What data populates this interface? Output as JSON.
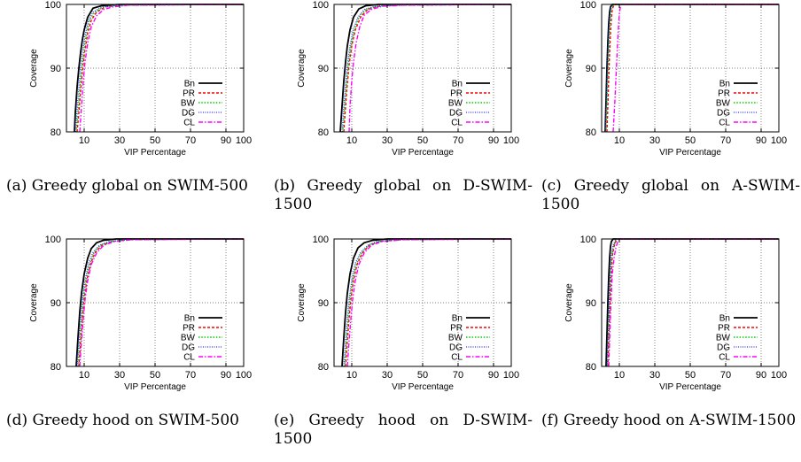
{
  "figure": {
    "legend_labels": [
      "Bn",
      "PR",
      "BW",
      "DG",
      "CL"
    ],
    "series_colors": {
      "Bn": "#000000",
      "PR": "#ff0000",
      "BW": "#00cc00",
      "DG": "#3333ff",
      "CL": "#ff00ff"
    }
  },
  "chart_data": [
    {
      "type": "line",
      "caption": "(a) Greedy global on SWIM-500",
      "xlabel": "VIP Percentage",
      "ylabel": "Coverage",
      "xlim": [
        0,
        100
      ],
      "ylim": [
        80,
        100
      ],
      "xticks": [
        10,
        30,
        50,
        70,
        90,
        100
      ],
      "yticks": [
        80,
        90,
        100
      ],
      "grid": true,
      "legend_position": "bottom-right",
      "series": [
        {
          "name": "Bn",
          "x": [
            4.5,
            5,
            6,
            7,
            8,
            9,
            10,
            12,
            15,
            20,
            30,
            100
          ],
          "y": [
            80,
            83,
            87,
            90,
            92.5,
            94.5,
            96,
            98,
            99.4,
            99.8,
            100,
            100
          ]
        },
        {
          "name": "PR",
          "x": [
            6,
            7,
            8,
            9,
            10,
            12,
            14,
            17,
            22,
            30,
            100
          ],
          "y": [
            80,
            83,
            86.5,
            89.5,
            92,
            95.5,
            97.5,
            98.8,
            99.6,
            99.9,
            100
          ]
        },
        {
          "name": "BW",
          "x": [
            5.5,
            6.5,
            7.5,
            8.5,
            9.5,
            11,
            13,
            16,
            21,
            30,
            100
          ],
          "y": [
            80,
            83,
            86.5,
            89.5,
            92,
            95,
            97.5,
            98.8,
            99.6,
            99.9,
            100
          ]
        },
        {
          "name": "DG",
          "x": [
            5,
            6,
            7,
            8,
            9,
            10.5,
            12.5,
            15,
            20,
            30,
            100
          ],
          "y": [
            80,
            83.5,
            87,
            90,
            92.5,
            95.2,
            97.5,
            98.8,
            99.6,
            99.9,
            100
          ]
        },
        {
          "name": "CL",
          "x": [
            7.5,
            8.5,
            9.5,
            10.5,
            12,
            14,
            17,
            21,
            26,
            35,
            100
          ],
          "y": [
            80,
            84,
            88,
            91,
            94,
            96.5,
            98.2,
            99.2,
            99.6,
            99.9,
            100
          ]
        }
      ]
    },
    {
      "type": "line",
      "caption": "(b) Greedy global on D-SWIM-1500",
      "xlabel": "VIP Percentage",
      "ylabel": "Coverage",
      "xlim": [
        0,
        100
      ],
      "ylim": [
        80,
        100
      ],
      "xticks": [
        10,
        30,
        50,
        70,
        90,
        100
      ],
      "yticks": [
        80,
        90,
        100
      ],
      "grid": true,
      "legend_position": "bottom-right",
      "series": [
        {
          "name": "Bn",
          "x": [
            3.5,
            4.5,
            5.5,
            6.5,
            7.5,
            9,
            11,
            14,
            18,
            25,
            100
          ],
          "y": [
            80,
            84,
            88,
            91,
            93.5,
            96,
            98,
            99.3,
            99.8,
            100,
            100
          ]
        },
        {
          "name": "PR",
          "x": [
            5.5,
            6.5,
            7.5,
            8.5,
            10,
            12,
            15,
            19,
            25,
            35,
            100
          ],
          "y": [
            80,
            84,
            87.5,
            90.5,
            93.5,
            96,
            98,
            99.2,
            99.7,
            99.9,
            100
          ]
        },
        {
          "name": "BW",
          "x": [
            5,
            6,
            7,
            8,
            9.5,
            11.5,
            14,
            18,
            24,
            35,
            100
          ],
          "y": [
            80,
            84,
            87.5,
            90.5,
            93.5,
            96,
            98,
            99.2,
            99.7,
            99.9,
            100
          ]
        },
        {
          "name": "DG",
          "x": [
            4.5,
            5.5,
            6.5,
            7.5,
            9,
            11,
            13.5,
            17,
            23,
            35,
            100
          ],
          "y": [
            80,
            84,
            87.5,
            90.5,
            93.5,
            96.2,
            98,
            99.2,
            99.7,
            99.9,
            100
          ]
        },
        {
          "name": "CL",
          "x": [
            8.5,
            9,
            10,
            11,
            12.5,
            14.5,
            17,
            21,
            27,
            40,
            100
          ],
          "y": [
            80,
            84,
            88,
            91,
            94,
            96.5,
            98.3,
            99.2,
            99.7,
            99.9,
            100
          ]
        }
      ]
    },
    {
      "type": "line",
      "caption": "(c) Greedy global on A-SWIM-1500",
      "xlabel": "VIP Percentage",
      "ylabel": "Coverage",
      "xlim": [
        0,
        100
      ],
      "ylim": [
        80,
        100
      ],
      "xticks": [
        10,
        30,
        50,
        70,
        90,
        100
      ],
      "yticks": [
        80,
        90,
        100
      ],
      "grid": true,
      "legend_position": "bottom-right",
      "series": [
        {
          "name": "Bn",
          "x": [
            2,
            2.5,
            3,
            3.5,
            4,
            4.5,
            5,
            6,
            100
          ],
          "y": [
            80,
            85,
            90,
            94,
            97,
            98.8,
            99.6,
            100,
            100
          ]
        },
        {
          "name": "PR",
          "x": [
            3,
            3.5,
            4,
            4.5,
            5,
            5.5,
            6,
            7,
            100
          ],
          "y": [
            80,
            84,
            88.5,
            92.5,
            95.5,
            97.8,
            99.2,
            100,
            100
          ]
        },
        {
          "name": "BW",
          "x": [
            2.5,
            3,
            3.5,
            4,
            4.5,
            5,
            5.5,
            6.5,
            100
          ],
          "y": [
            80,
            84.5,
            89,
            93,
            96,
            98.2,
            99.4,
            100,
            100
          ]
        },
        {
          "name": "DG",
          "x": [
            2.2,
            2.7,
            3.2,
            3.7,
            4.2,
            4.7,
            5.2,
            6.2,
            100
          ],
          "y": [
            80,
            85,
            89.5,
            93.5,
            96.5,
            98.5,
            99.5,
            100,
            100
          ]
        },
        {
          "name": "CL",
          "x": [
            6.5,
            7,
            7.5,
            8,
            8.5,
            9,
            9.5,
            10,
            10.5,
            11,
            100
          ],
          "y": [
            80,
            82.5,
            85,
            88,
            91,
            94,
            96.5,
            98.5,
            99.5,
            100,
            100
          ]
        }
      ]
    },
    {
      "type": "line",
      "caption": "(d) Greedy hood on SWIM-500",
      "xlabel": "VIP Percentage",
      "ylabel": "Coverage",
      "xlim": [
        0,
        100
      ],
      "ylim": [
        80,
        100
      ],
      "xticks": [
        10,
        30,
        50,
        70,
        90,
        100
      ],
      "yticks": [
        80,
        90,
        100
      ],
      "grid": true,
      "legend_position": "bottom-right",
      "series": [
        {
          "name": "Bn",
          "x": [
            5.5,
            6.5,
            7.5,
            8.5,
            10,
            12,
            14,
            17,
            21,
            28,
            100
          ],
          "y": [
            80,
            84.5,
            88.5,
            91.5,
            94.5,
            97,
            98.5,
            99.4,
            99.8,
            100,
            100
          ]
        },
        {
          "name": "PR",
          "x": [
            7,
            8,
            9,
            10,
            11.5,
            13.5,
            16,
            20,
            26,
            35,
            100
          ],
          "y": [
            80,
            84,
            87.5,
            90.5,
            93.5,
            96,
            97.8,
            99,
            99.6,
            99.9,
            100
          ]
        },
        {
          "name": "BW",
          "x": [
            6.5,
            7.5,
            8.5,
            9.5,
            11,
            13,
            15.5,
            19,
            25,
            35,
            100
          ],
          "y": [
            80,
            84,
            87.5,
            90.5,
            93.5,
            96,
            97.8,
            99,
            99.6,
            99.9,
            100
          ]
        },
        {
          "name": "DG",
          "x": [
            6,
            7,
            8,
            9,
            10.5,
            12.5,
            15,
            18.5,
            24,
            35,
            100
          ],
          "y": [
            80,
            84,
            87.5,
            90.5,
            93.5,
            96.2,
            97.9,
            99,
            99.6,
            99.9,
            100
          ]
        },
        {
          "name": "CL",
          "x": [
            7.5,
            8.5,
            9.5,
            10.5,
            12,
            14,
            17,
            21,
            27,
            38,
            100
          ],
          "y": [
            80,
            84,
            87.5,
            90.5,
            93.5,
            96,
            97.8,
            99,
            99.6,
            99.9,
            100
          ]
        }
      ]
    },
    {
      "type": "line",
      "caption": "(e) Greedy hood on D-SWIM-1500",
      "xlabel": "VIP Percentage",
      "ylabel": "Coverage",
      "xlim": [
        0,
        100
      ],
      "ylim": [
        80,
        100
      ],
      "xticks": [
        10,
        30,
        50,
        70,
        90,
        100
      ],
      "yticks": [
        80,
        90,
        100
      ],
      "grid": true,
      "legend_position": "bottom-right",
      "series": [
        {
          "name": "Bn",
          "x": [
            4.5,
            5.5,
            6.5,
            7.5,
            9,
            11,
            13.5,
            17,
            22,
            30,
            100
          ],
          "y": [
            80,
            84.5,
            88.5,
            91.5,
            94.5,
            97,
            98.6,
            99.4,
            99.8,
            100,
            100
          ]
        },
        {
          "name": "PR",
          "x": [
            6.5,
            7.5,
            8.5,
            9.5,
            11,
            13,
            16,
            20,
            26,
            38,
            100
          ],
          "y": [
            80,
            84,
            87.5,
            90.5,
            93.5,
            96,
            97.8,
            99,
            99.6,
            99.9,
            100
          ]
        },
        {
          "name": "BW",
          "x": [
            6,
            7,
            8,
            9,
            10.5,
            12.5,
            15.5,
            19.5,
            25,
            38,
            100
          ],
          "y": [
            80,
            84,
            87.5,
            90.5,
            93.5,
            96,
            97.8,
            99,
            99.6,
            99.9,
            100
          ]
        },
        {
          "name": "DG",
          "x": [
            5.5,
            6.5,
            7.5,
            8.5,
            10,
            12,
            15,
            19,
            24,
            38,
            100
          ],
          "y": [
            80,
            84,
            87.5,
            90.5,
            93.5,
            96.2,
            97.9,
            99,
            99.6,
            99.9,
            100
          ]
        },
        {
          "name": "CL",
          "x": [
            7.5,
            8.5,
            9.5,
            10.5,
            12,
            14,
            17,
            21,
            27,
            40,
            100
          ],
          "y": [
            80,
            84,
            87.5,
            90.5,
            93.5,
            96,
            97.8,
            99,
            99.6,
            99.9,
            100
          ]
        }
      ]
    },
    {
      "type": "line",
      "caption": "(f) Greedy hood on A-SWIM-1500",
      "xlabel": "VIP Percentage",
      "ylabel": "Coverage",
      "xlim": [
        0,
        100
      ],
      "ylim": [
        80,
        100
      ],
      "xticks": [
        10,
        30,
        50,
        70,
        90,
        100
      ],
      "yticks": [
        80,
        90,
        100
      ],
      "grid": true,
      "legend_position": "bottom-right",
      "series": [
        {
          "name": "Bn",
          "x": [
            2.5,
            3,
            3.5,
            4,
            4.5,
            5,
            5.5,
            6.5,
            100
          ],
          "y": [
            80,
            85,
            90,
            94,
            97,
            98.8,
            99.6,
            100,
            100
          ]
        },
        {
          "name": "PR",
          "x": [
            3.5,
            4,
            4.5,
            5,
            5.5,
            6,
            7,
            8,
            9,
            100
          ],
          "y": [
            80,
            84,
            88,
            92,
            95,
            97.2,
            98.8,
            99.6,
            100,
            100
          ]
        },
        {
          "name": "BW",
          "x": [
            3.2,
            3.7,
            4.2,
            4.7,
            5.2,
            5.7,
            6.7,
            7.7,
            8.7,
            100
          ],
          "y": [
            80,
            84,
            88,
            92,
            95,
            97.2,
            98.8,
            99.6,
            100,
            100
          ]
        },
        {
          "name": "DG",
          "x": [
            3,
            3.5,
            4,
            4.5,
            5,
            5.5,
            6.5,
            7.5,
            8.5,
            100
          ],
          "y": [
            80,
            84.5,
            88.5,
            92.5,
            95.5,
            97.5,
            99,
            99.7,
            100,
            100
          ]
        },
        {
          "name": "CL",
          "x": [
            4,
            4.5,
            5,
            5.5,
            6,
            7,
            8,
            9,
            10,
            100
          ],
          "y": [
            80,
            84,
            88,
            91.5,
            94.5,
            97,
            98.6,
            99.5,
            100,
            100
          ]
        }
      ]
    }
  ]
}
